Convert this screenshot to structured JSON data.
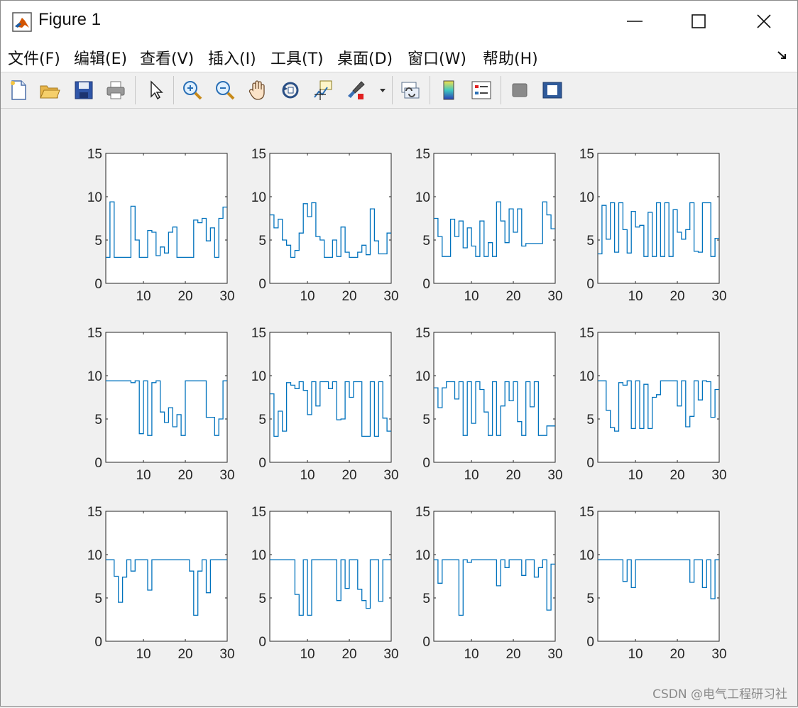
{
  "window": {
    "title": "Figure 1",
    "menu": [
      "文件(F)",
      "编辑(E)",
      "查看(V)",
      "插入(I)",
      "工具(T)",
      "桌面(D)",
      "窗口(W)",
      "帮助(H)"
    ],
    "toolbar_icons": [
      "new-figure-icon",
      "open-file-icon",
      "save-icon",
      "print-icon",
      "select-arrow-icon",
      "zoom-in-icon",
      "zoom-out-icon",
      "pan-hand-icon",
      "rotate-3d-icon",
      "data-cursor-icon",
      "brush-icon",
      "link-plot-icon",
      "colorbar-icon",
      "legend-icon",
      "hide-plot-tools-icon",
      "show-plot-tools-icon"
    ]
  },
  "watermark": "CSDN @电气工程研习社",
  "colors": {
    "line": "#0072bd",
    "axes": "#262626",
    "figure_bg": "#f0f0f0",
    "axes_bg": "#ffffff"
  },
  "chart_data": [
    {
      "type": "line",
      "step": true,
      "xlim": [
        1,
        30
      ],
      "ylim": [
        0,
        15
      ],
      "xticks": [
        10,
        20,
        30
      ],
      "yticks": [
        0,
        5,
        10,
        15
      ],
      "y": [
        3,
        9.4,
        3,
        3,
        3,
        3,
        8.9,
        5,
        3,
        3,
        6.1,
        5.9,
        3.2,
        4.2,
        3.5,
        5.9,
        6.5,
        3,
        3,
        3,
        3,
        7.3,
        7.0,
        7.5,
        4.9,
        6.4,
        3,
        7.5,
        8.8,
        3.8,
        3
      ]
    },
    {
      "type": "line",
      "step": true,
      "xlim": [
        1,
        30
      ],
      "ylim": [
        0,
        15
      ],
      "xticks": [
        10,
        20,
        30
      ],
      "yticks": [
        0,
        5,
        10,
        15
      ],
      "y": [
        7.9,
        6.4,
        7.4,
        5,
        4.4,
        3,
        3.8,
        5.8,
        9.2,
        7.7,
        9.3,
        5.4,
        5,
        3,
        3,
        5,
        3.1,
        6.5,
        3.6,
        3,
        3,
        3.6,
        4.4,
        3.3,
        8.6,
        4.9,
        3.4,
        3.4,
        5.8,
        3.2,
        3.2
      ]
    },
    {
      "type": "line",
      "step": true,
      "xlim": [
        1,
        30
      ],
      "ylim": [
        0,
        15
      ],
      "xticks": [
        10,
        20,
        30
      ],
      "yticks": [
        0,
        5,
        10,
        15
      ],
      "y": [
        7.5,
        5.4,
        3.1,
        3.1,
        7.4,
        5.4,
        7.2,
        4.1,
        6.4,
        4.3,
        3.1,
        7.2,
        3.1,
        4.7,
        3.1,
        9.4,
        7.2,
        4.7,
        8.6,
        5.9,
        8.6,
        4.3,
        4.6,
        4.6,
        4.6,
        4.6,
        9.4,
        7.9,
        6.3,
        8.3,
        8.3
      ]
    },
    {
      "type": "line",
      "step": true,
      "xlim": [
        1,
        30
      ],
      "ylim": [
        0,
        15
      ],
      "xticks": [
        10,
        20,
        30
      ],
      "yticks": [
        0,
        5,
        10,
        15
      ],
      "y": [
        3.4,
        9.0,
        5.1,
        9.3,
        3.6,
        9.3,
        6.2,
        3.5,
        8.3,
        6.5,
        6.7,
        3.1,
        8.2,
        3.1,
        9.3,
        3.1,
        9.3,
        3.1,
        8.5,
        5.9,
        5.1,
        6.2,
        9.3,
        3.7,
        3.6,
        9.3,
        9.3,
        3.1,
        5.2,
        9.3,
        9.3
      ]
    },
    {
      "type": "line",
      "step": true,
      "xlim": [
        1,
        30
      ],
      "ylim": [
        0,
        15
      ],
      "xticks": [
        10,
        20,
        30
      ],
      "yticks": [
        0,
        5,
        10,
        15
      ],
      "y": [
        9.4,
        9.4,
        9.4,
        9.4,
        9.4,
        9.4,
        9.2,
        9.4,
        3.3,
        9.4,
        3.1,
        9.2,
        9.4,
        5.8,
        4.6,
        6.3,
        4.1,
        5.5,
        3.1,
        9.4,
        9.4,
        9.4,
        9.4,
        9.4,
        5.2,
        5.2,
        3.1,
        5.0,
        9.4,
        3.1,
        4.3
      ]
    },
    {
      "type": "line",
      "step": true,
      "xlim": [
        1,
        30
      ],
      "ylim": [
        0,
        15
      ],
      "xticks": [
        10,
        20,
        30
      ],
      "yticks": [
        0,
        5,
        10,
        15
      ],
      "y": [
        7.9,
        3.0,
        5.9,
        3.6,
        9.2,
        8.9,
        8.5,
        9.3,
        8.3,
        5.5,
        9.3,
        6.5,
        9.3,
        9.3,
        8.5,
        9.3,
        4.9,
        5.0,
        9.3,
        7.5,
        9.3,
        9.3,
        3.0,
        3.0,
        9.3,
        3.0,
        9.3,
        5.1,
        3.6,
        7.0,
        3.6
      ]
    },
    {
      "type": "line",
      "step": true,
      "xlim": [
        1,
        30
      ],
      "ylim": [
        0,
        15
      ],
      "xticks": [
        10,
        20,
        30
      ],
      "yticks": [
        0,
        5,
        10,
        15
      ],
      "y": [
        8.6,
        6.3,
        8.6,
        9.3,
        9.3,
        7.3,
        9.3,
        3.1,
        9.3,
        4.5,
        9.3,
        8.4,
        5.8,
        3.1,
        9.3,
        3.1,
        6.5,
        9.3,
        7.1,
        9.3,
        4.7,
        3.1,
        9.3,
        6.4,
        9.3,
        3.1,
        3.1,
        4.2,
        4.2,
        4.2,
        4.2
      ]
    },
    {
      "type": "line",
      "step": true,
      "xlim": [
        1,
        30
      ],
      "ylim": [
        0,
        15
      ],
      "xticks": [
        10,
        20,
        30
      ],
      "yticks": [
        0,
        5,
        10,
        15
      ],
      "y": [
        9.4,
        9.4,
        6.0,
        4.0,
        3.6,
        9.2,
        8.9,
        9.4,
        3.9,
        9.4,
        3.9,
        9.0,
        3.9,
        7.5,
        7.8,
        9.4,
        9.4,
        9.4,
        9.4,
        6.5,
        9.4,
        4.1,
        5.3,
        9.4,
        7.2,
        9.4,
        9.3,
        5.2,
        8.4,
        5.2,
        5.2
      ]
    },
    {
      "type": "line",
      "step": true,
      "xlim": [
        1,
        30
      ],
      "ylim": [
        0,
        15
      ],
      "xticks": [
        10,
        20,
        30
      ],
      "yticks": [
        0,
        5,
        10,
        15
      ],
      "y": [
        9.4,
        9.4,
        7.5,
        4.5,
        7.4,
        9.4,
        8.1,
        9.4,
        9.4,
        9.4,
        5.9,
        9.4,
        9.4,
        9.4,
        9.4,
        9.4,
        9.4,
        9.4,
        9.4,
        9.4,
        8.1,
        3.0,
        8.1,
        9.4,
        5.6,
        9.4,
        9.4,
        9.4,
        9.4,
        9.4,
        9.4
      ]
    },
    {
      "type": "line",
      "step": true,
      "xlim": [
        1,
        30
      ],
      "ylim": [
        0,
        15
      ],
      "xticks": [
        10,
        20,
        30
      ],
      "yticks": [
        0,
        5,
        10,
        15
      ],
      "y": [
        9.4,
        9.4,
        9.4,
        9.4,
        9.4,
        9.4,
        5.4,
        3.0,
        9.4,
        3.0,
        9.4,
        9.4,
        9.4,
        9.4,
        9.4,
        9.4,
        4.7,
        9.4,
        6.1,
        9.4,
        9.4,
        6.0,
        4.7,
        3.8,
        9.4,
        9.4,
        4.6,
        9.4,
        9.4,
        9.4,
        9.4
      ]
    },
    {
      "type": "line",
      "step": true,
      "xlim": [
        1,
        30
      ],
      "ylim": [
        0,
        15
      ],
      "xticks": [
        10,
        20,
        30
      ],
      "yticks": [
        0,
        5,
        10,
        15
      ],
      "y": [
        9.4,
        6.7,
        9.4,
        9.4,
        9.4,
        9.4,
        3.0,
        9.4,
        9.1,
        9.4,
        9.4,
        9.4,
        9.4,
        9.4,
        9.4,
        6.4,
        9.4,
        8.5,
        9.4,
        9.4,
        9.4,
        7.6,
        9.4,
        9.4,
        7.4,
        8.5,
        9.4,
        3.6,
        8.9,
        9.4,
        9.4
      ]
    },
    {
      "type": "line",
      "step": true,
      "xlim": [
        1,
        30
      ],
      "ylim": [
        0,
        15
      ],
      "xticks": [
        10,
        20,
        30
      ],
      "yticks": [
        0,
        5,
        10,
        15
      ],
      "y": [
        9.4,
        9.4,
        9.4,
        9.4,
        9.4,
        9.4,
        6.9,
        9.4,
        6.2,
        9.4,
        9.4,
        9.4,
        9.4,
        9.4,
        9.4,
        9.4,
        9.4,
        9.4,
        9.4,
        9.4,
        9.4,
        9.4,
        6.8,
        9.4,
        9.4,
        6.2,
        9.4,
        4.9,
        9.4,
        9.4,
        9.4
      ]
    }
  ]
}
